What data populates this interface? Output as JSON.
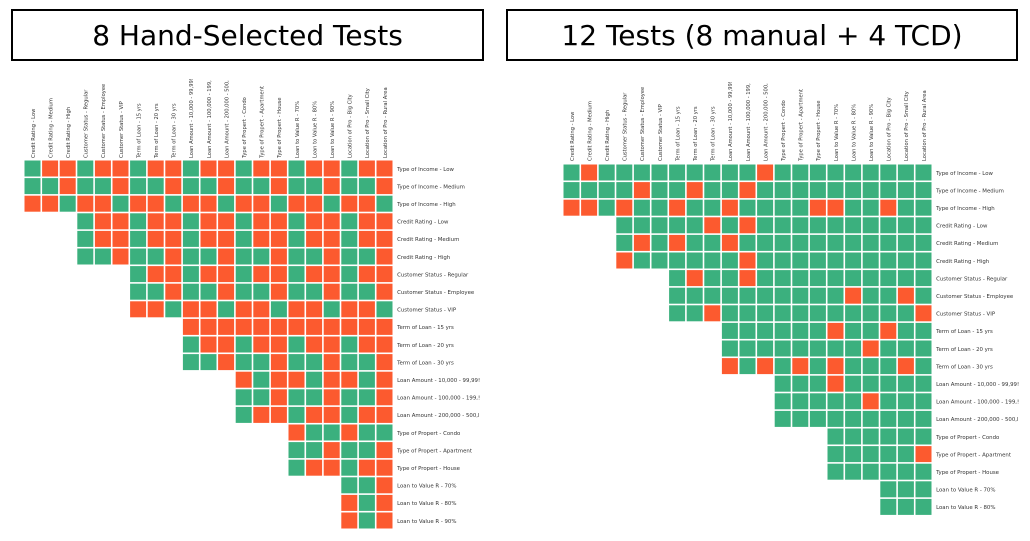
{
  "titles": {
    "left": "8 Hand-Selected Tests",
    "right": "12 Tests (8 manual + 4 TCD)"
  },
  "colors": {
    "covered": "#3bb07e",
    "uncovered": "#fc5a2f"
  },
  "chart_data": [
    {
      "type": "heatmap",
      "title": "8 Hand-Selected Tests",
      "columns": [
        "Credit Rating - Low",
        "Credit Rating - Medium",
        "Credit Rating - High",
        "Customer Status - Regular",
        "Customer Status - Employee",
        "Customer Status - VIP",
        "Term of Loan - 15 yrs",
        "Term of Loan - 20 yrs",
        "Term of Loan - 30 yrs",
        "Loan Amount - 10,000 - 99,99!",
        "Loan Amount - 100,000 - 199,",
        "Loan Amount - 200,000 - 500,",
        "Type of Propert - Condo",
        "Type of Propert - Apartment",
        "Type of Propert - House",
        "Loan to Value R - 70%",
        "Loan to Value R - 80%",
        "Loan to Value R - 90%",
        "Location of Pro - Big City",
        "Location of Pro - Small City",
        "Location of Pro - Rural Area"
      ],
      "rows": [
        "Type of Income - Low",
        "Type of Income - Medium",
        "Type of Income - High",
        "Credit Rating - Low",
        "Credit Rating - Medium",
        "Credit Rating - High",
        "Customer Status - Regular",
        "Customer Status - Employee",
        "Customer Status - VIP",
        "Term of Loan - 15 yrs",
        "Term of Loan - 20 yrs",
        "Term of Loan - 30 yrs",
        "Loan Amount - 10,000 - 99,99!",
        "Loan Amount - 100,000 - 199,!",
        "Loan Amount - 200,000 - 500,l",
        "Type of Propert - Condo",
        "Type of Propert - Apartment",
        "Type of Propert - House",
        "Loan to Value R - 70%",
        "Loan to Value R - 80%",
        "Loan to Value R - 90%"
      ],
      "start_cols": [
        0,
        0,
        0,
        3,
        3,
        3,
        6,
        6,
        6,
        9,
        9,
        9,
        12,
        12,
        12,
        15,
        15,
        15,
        18,
        18,
        18
      ],
      "values": [
        [
          1,
          0,
          0,
          1,
          0,
          0,
          1,
          0,
          0,
          1,
          0,
          0,
          1,
          0,
          0,
          1,
          0,
          0,
          1,
          0,
          0
        ],
        [
          1,
          1,
          0,
          1,
          1,
          0,
          1,
          1,
          0,
          1,
          1,
          0,
          1,
          1,
          0,
          1,
          1,
          0,
          1,
          1,
          0
        ],
        [
          0,
          0,
          1,
          0,
          0,
          1,
          0,
          0,
          1,
          0,
          0,
          1,
          0,
          0,
          1,
          0,
          0,
          1,
          0,
          0,
          1
        ],
        [
          1,
          0,
          0,
          1,
          0,
          0,
          1,
          0,
          0,
          1,
          0,
          0,
          1,
          0,
          0,
          1,
          0,
          0
        ],
        [
          1,
          0,
          0,
          1,
          0,
          0,
          1,
          0,
          0,
          1,
          0,
          0,
          1,
          0,
          0,
          1,
          0,
          0
        ],
        [
          1,
          1,
          0,
          1,
          1,
          0,
          1,
          1,
          0,
          1,
          1,
          0,
          1,
          1,
          0,
          1,
          1,
          0
        ],
        [
          1,
          0,
          0,
          1,
          0,
          0,
          1,
          0,
          0,
          1,
          0,
          0,
          1,
          0,
          0
        ],
        [
          1,
          1,
          0,
          1,
          1,
          0,
          1,
          1,
          0,
          1,
          1,
          0,
          1,
          1,
          0
        ],
        [
          0,
          0,
          1,
          0,
          0,
          1,
          0,
          0,
          1,
          0,
          0,
          1,
          0,
          0,
          1
        ],
        [
          0,
          0,
          0,
          0,
          0,
          0,
          0,
          0,
          0,
          0,
          0,
          0
        ],
        [
          1,
          0,
          0,
          1,
          0,
          0,
          1,
          0,
          0,
          1,
          0,
          0
        ],
        [
          1,
          1,
          0,
          1,
          1,
          0,
          1,
          1,
          0,
          1,
          1,
          0
        ],
        [
          0,
          1,
          0,
          0,
          1,
          0,
          0,
          1,
          0
        ],
        [
          1,
          1,
          0,
          1,
          1,
          0,
          1,
          1,
          0
        ],
        [
          1,
          0,
          0,
          1,
          0,
          0,
          1,
          0,
          0
        ],
        [
          0,
          1,
          1,
          0,
          1,
          1
        ],
        [
          1,
          1,
          0,
          1,
          1,
          0
        ],
        [
          1,
          0,
          0,
          1,
          0,
          0
        ],
        [
          1,
          1,
          0
        ],
        [
          0,
          1,
          0
        ],
        [
          0,
          1,
          0
        ]
      ]
    },
    {
      "type": "heatmap",
      "title": "12 Tests (8 manual + 4 TCD)",
      "columns": [
        "Credit Rating - Low",
        "Credit Rating - Medium",
        "Credit Rating - High",
        "Customer Status - Regular",
        "Customer Status - Employee",
        "Customer Status - VIP",
        "Term of Loan - 15 yrs",
        "Term of Loan - 20 yrs",
        "Term of Loan - 30 yrs",
        "Loan Amount - 10,000 - 99,99!",
        "Loan Amount - 100,000 - 199,",
        "Loan Amount - 200,000 - 500,",
        "Type of Propert - Condo",
        "Type of Propert - Apartment",
        "Type of Propert - House",
        "Loan to Value R - 70%",
        "Loan to Value R - 80%",
        "Loan to Value R - 90%",
        "Location of Pro - Big City",
        "Location of Pro - Small City",
        "Location of Pro - Rural Area"
      ],
      "rows": [
        "Type of Income - Low",
        "Type of Income - Medium",
        "Type of Income - High",
        "Credit Rating - Low",
        "Credit Rating - Medium",
        "Credit Rating - High",
        "Customer Status - Regular",
        "Customer Status - Employee",
        "Customer Status - VIP",
        "Term of Loan - 15 yrs",
        "Term of Loan - 20 yrs",
        "Term of Loan - 30 yrs",
        "Loan Amount - 10,000 - 99,99!",
        "Loan Amount - 100,000 - 199,!",
        "Loan Amount - 200,000 - 500,l",
        "Type of Propert - Condo",
        "Type of Propert - Apartment",
        "Type of Propert - House",
        "Loan to Value R - 70%",
        "Loan to Value R - 80%"
      ],
      "start_cols": [
        0,
        0,
        0,
        3,
        3,
        3,
        6,
        6,
        6,
        9,
        9,
        9,
        12,
        12,
        12,
        15,
        15,
        15,
        18,
        18
      ],
      "values": [
        [
          1,
          0,
          1,
          1,
          1,
          1,
          1,
          1,
          1,
          1,
          1,
          0,
          1,
          1,
          1,
          1,
          1,
          1,
          1,
          1,
          1
        ],
        [
          1,
          1,
          1,
          1,
          0,
          1,
          1,
          0,
          1,
          1,
          0,
          1,
          1,
          1,
          1,
          1,
          1,
          1,
          1,
          1,
          1
        ],
        [
          0,
          0,
          1,
          0,
          1,
          1,
          0,
          1,
          1,
          0,
          1,
          1,
          1,
          1,
          0,
          0,
          1,
          1,
          0,
          1,
          1
        ],
        [
          1,
          1,
          1,
          1,
          1,
          0,
          1,
          0,
          1,
          1,
          1,
          1,
          1,
          1,
          1,
          1,
          1,
          1
        ],
        [
          1,
          0,
          1,
          0,
          1,
          1,
          0,
          1,
          1,
          1,
          1,
          1,
          1,
          1,
          1,
          1,
          1,
          1
        ],
        [
          0,
          1,
          1,
          1,
          1,
          1,
          1,
          0,
          1,
          1,
          1,
          1,
          1,
          1,
          1,
          1,
          1,
          1
        ],
        [
          1,
          0,
          1,
          1,
          0,
          1,
          1,
          1,
          1,
          1,
          1,
          1,
          1,
          1,
          1
        ],
        [
          1,
          1,
          1,
          1,
          1,
          1,
          1,
          1,
          1,
          1,
          0,
          1,
          1,
          0,
          1
        ],
        [
          1,
          1,
          0,
          1,
          1,
          1,
          1,
          1,
          1,
          1,
          1,
          1,
          1,
          1,
          0
        ],
        [
          1,
          1,
          1,
          1,
          1,
          1,
          0,
          1,
          1,
          0,
          1,
          1
        ],
        [
          1,
          1,
          1,
          1,
          1,
          1,
          1,
          1,
          0,
          1,
          1,
          1
        ],
        [
          0,
          1,
          0,
          1,
          0,
          1,
          0,
          1,
          1,
          1,
          0,
          1
        ],
        [
          1,
          1,
          1,
          0,
          1,
          1,
          1,
          1,
          1
        ],
        [
          1,
          1,
          1,
          1,
          1,
          0,
          1,
          1,
          1
        ],
        [
          1,
          1,
          1,
          1,
          1,
          1,
          1,
          1,
          1
        ],
        [
          1,
          1,
          1,
          1,
          1,
          1
        ],
        [
          1,
          1,
          1,
          1,
          1,
          0
        ],
        [
          1,
          1,
          1,
          1,
          1,
          1
        ],
        [
          1,
          1,
          1
        ],
        [
          1,
          1,
          1
        ]
      ]
    }
  ]
}
